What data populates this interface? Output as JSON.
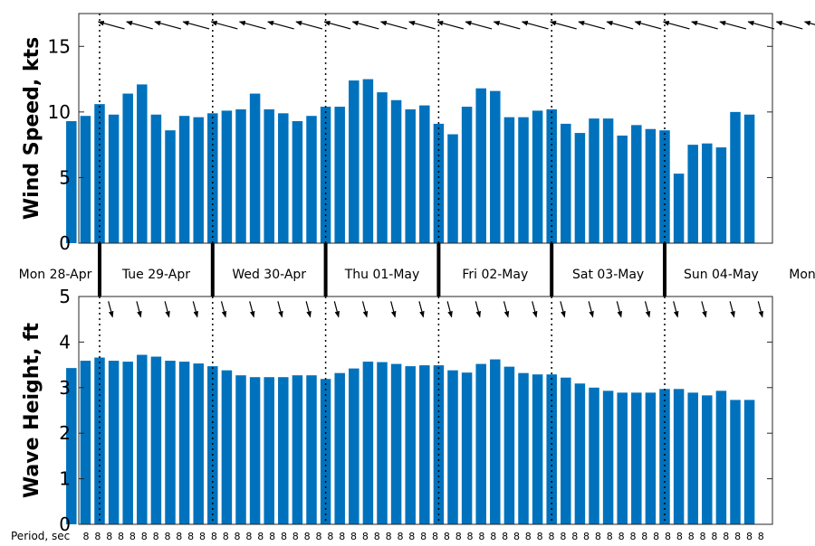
{
  "chart_data": [
    {
      "type": "bar",
      "panel": "wind",
      "ylabel": "Wind Speed, kts",
      "ylim": [
        0,
        17.5
      ],
      "yticks": [
        0,
        5,
        10,
        15
      ],
      "color": "#0072BD",
      "interval_hours": 3,
      "values": [
        9.3,
        9.7,
        10.6,
        9.8,
        11.4,
        12.1,
        9.8,
        8.6,
        9.7,
        9.6,
        9.9,
        10.1,
        10.2,
        11.4,
        10.2,
        9.9,
        9.3,
        9.7,
        10.4,
        10.4,
        12.4,
        12.5,
        11.5,
        10.9,
        10.2,
        10.5,
        9.1,
        8.3,
        10.4,
        11.8,
        11.6,
        9.6,
        9.6,
        10.1,
        10.2,
        9.1,
        8.4,
        9.5,
        9.5,
        8.2,
        9.0,
        8.7,
        8.6,
        5.3,
        7.5,
        7.6,
        7.3,
        10.0,
        9.8
      ],
      "wind_arrow_headings_deg": [
        285,
        285,
        285,
        285,
        285,
        285,
        285,
        285,
        285,
        285,
        285,
        285,
        285,
        285,
        285,
        285,
        285,
        285,
        285,
        285,
        285,
        285,
        285,
        285,
        285,
        285,
        285,
        285,
        285,
        285,
        285,
        285,
        285,
        285,
        285,
        285,
        285,
        285,
        285,
        285,
        285,
        285,
        240,
        255,
        255,
        240
      ]
    },
    {
      "type": "bar",
      "panel": "wave",
      "ylabel": "Wave Height, ft",
      "ylim": [
        0,
        5
      ],
      "yticks": [
        0,
        1,
        2,
        3,
        4,
        5
      ],
      "color": "#0072BD",
      "interval_hours": 3,
      "values": [
        3.43,
        3.59,
        3.66,
        3.59,
        3.57,
        3.72,
        3.68,
        3.59,
        3.57,
        3.53,
        3.47,
        3.38,
        3.27,
        3.23,
        3.23,
        3.23,
        3.27,
        3.27,
        3.19,
        3.32,
        3.42,
        3.57,
        3.56,
        3.52,
        3.47,
        3.49,
        3.49,
        3.38,
        3.33,
        3.52,
        3.62,
        3.46,
        3.32,
        3.29,
        3.29,
        3.22,
        3.09,
        3.0,
        2.93,
        2.89,
        2.89,
        2.89,
        2.97,
        2.97,
        2.89,
        2.83,
        2.93,
        2.73,
        2.73
      ],
      "wave_arrow_headings_deg": [
        165,
        165,
        165,
        165,
        165,
        165,
        165,
        165,
        165,
        165,
        165,
        165,
        165,
        165,
        165,
        165,
        165,
        165,
        165,
        165,
        165,
        165,
        165,
        165
      ]
    }
  ],
  "days": [
    "Mon 28-Apr",
    "Tue 29-Apr",
    "Wed 30-Apr",
    "Thu 01-May",
    "Fri 02-May",
    "Sat 03-May",
    "Sun 04-May",
    "Mon"
  ],
  "period": {
    "label": "Period, sec",
    "values": [
      "8",
      "8",
      "8",
      "8",
      "8",
      "8",
      "8",
      "8",
      "8",
      "8",
      "8",
      "8",
      "8",
      "8",
      "8",
      "8",
      "8",
      "8",
      "8",
      "8",
      "8",
      "8",
      "8",
      "8",
      "8",
      "8",
      "8",
      "8",
      "8",
      "8",
      "8",
      "8",
      "8",
      "8",
      "8",
      "8",
      "8",
      "8",
      "8",
      "8",
      "8",
      "8",
      "8",
      "8",
      "8",
      "8",
      "8",
      "8",
      "8",
      "8",
      "8",
      "8",
      "8",
      "8",
      "8",
      "8",
      "8",
      "8",
      "8"
    ]
  }
}
